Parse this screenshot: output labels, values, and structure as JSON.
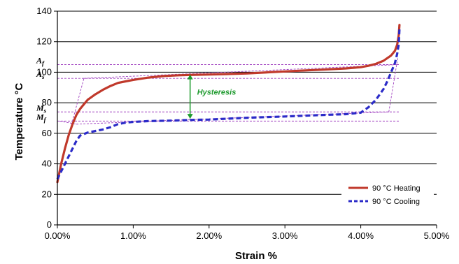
{
  "chart_data": {
    "type": "line",
    "title": "",
    "xlabel": "Strain %",
    "ylabel": "Temperature °C",
    "xlim": [
      0,
      0.05
    ],
    "ylim": [
      0,
      140
    ],
    "x_ticks": [
      0,
      0.01,
      0.02,
      0.03,
      0.04,
      0.05
    ],
    "x_tick_labels": [
      "0.00%",
      "1.00%",
      "2.00%",
      "3.00%",
      "4.00%",
      "5.00%"
    ],
    "y_ticks": [
      0,
      20,
      40,
      60,
      80,
      100,
      120,
      140
    ],
    "y_tick_labels": [
      "0",
      "20",
      "40",
      "60",
      "80",
      "100",
      "120",
      "140"
    ],
    "grid": true,
    "legend_position": "bottom-right",
    "series": [
      {
        "name": "90 °C Heating",
        "color": "#c0392b",
        "style": "solid",
        "points": [
          [
            0.0,
            28
          ],
          [
            0.0005,
            40
          ],
          [
            0.001,
            50
          ],
          [
            0.0015,
            59
          ],
          [
            0.002,
            66
          ],
          [
            0.0025,
            72
          ],
          [
            0.003,
            76
          ],
          [
            0.0035,
            79
          ],
          [
            0.004,
            82
          ],
          [
            0.005,
            85.5
          ],
          [
            0.006,
            88.5
          ],
          [
            0.007,
            91
          ],
          [
            0.008,
            93
          ],
          [
            0.009,
            94
          ],
          [
            0.01,
            95
          ],
          [
            0.012,
            96.5
          ],
          [
            0.014,
            97.5
          ],
          [
            0.016,
            98
          ],
          [
            0.018,
            98.3
          ],
          [
            0.02,
            98.5
          ],
          [
            0.022,
            98.8
          ],
          [
            0.025,
            99.2
          ],
          [
            0.028,
            100
          ],
          [
            0.03,
            100.5
          ],
          [
            0.032,
            101
          ],
          [
            0.035,
            101.7
          ],
          [
            0.038,
            102.5
          ],
          [
            0.04,
            103.3
          ],
          [
            0.041,
            104.2
          ],
          [
            0.042,
            105.5
          ],
          [
            0.043,
            107.5
          ],
          [
            0.044,
            111
          ],
          [
            0.0445,
            114
          ],
          [
            0.0448,
            118
          ],
          [
            0.045,
            124
          ],
          [
            0.0451,
            131
          ]
        ]
      },
      {
        "name": "90 °C Cooling",
        "color": "#2b2bc8",
        "style": "dashed",
        "points": [
          [
            0.0451,
            128
          ],
          [
            0.045,
            118
          ],
          [
            0.0448,
            112
          ],
          [
            0.0445,
            106
          ],
          [
            0.044,
            100
          ],
          [
            0.0435,
            94
          ],
          [
            0.043,
            89
          ],
          [
            0.042,
            82
          ],
          [
            0.041,
            77
          ],
          [
            0.04,
            73.5
          ],
          [
            0.038,
            72.5
          ],
          [
            0.035,
            72
          ],
          [
            0.03,
            71
          ],
          [
            0.025,
            70.2
          ],
          [
            0.02,
            69
          ],
          [
            0.018,
            68.8
          ],
          [
            0.015,
            68.3
          ],
          [
            0.012,
            68
          ],
          [
            0.01,
            67.5
          ],
          [
            0.009,
            67
          ],
          [
            0.008,
            66
          ],
          [
            0.007,
            64
          ],
          [
            0.006,
            62.5
          ],
          [
            0.005,
            61.5
          ],
          [
            0.004,
            60.5
          ],
          [
            0.003,
            58.5
          ],
          [
            0.0025,
            55
          ],
          [
            0.002,
            50
          ],
          [
            0.0015,
            45
          ],
          [
            0.001,
            40
          ],
          [
            0.0005,
            35
          ],
          [
            0.0,
            30
          ]
        ]
      }
    ],
    "transformation_temperatures": [
      {
        "label": "Af",
        "main": "A",
        "sub": "f",
        "y": 105
      },
      {
        "label": "As",
        "main": "A",
        "sub": "s",
        "y": 96
      },
      {
        "label": "Ms",
        "main": "M",
        "sub": "s",
        "y": 74
      },
      {
        "label": "Mf",
        "main": "M",
        "sub": "f",
        "y": 68
      }
    ],
    "annotations": [
      {
        "text": "Hysteresis",
        "x": 0.0175,
        "y_top": 99,
        "y_bottom": 69,
        "color": "#1e9a2e"
      }
    ],
    "guide_color": "#a040c0",
    "tangent_lines": [
      [
        [
          0.0035,
          96
        ],
        [
          0.045,
          105
        ]
      ],
      [
        [
          0.0015,
          59
        ],
        [
          0.0035,
          96
        ]
      ],
      [
        [
          0.0025,
          66
        ],
        [
          0.0437,
          74
        ]
      ],
      [
        [
          0.0437,
          74
        ],
        [
          0.0449,
          110
        ]
      ],
      [
        [
          0.0003,
          68
        ],
        [
          0.0025,
          66
        ]
      ]
    ]
  }
}
